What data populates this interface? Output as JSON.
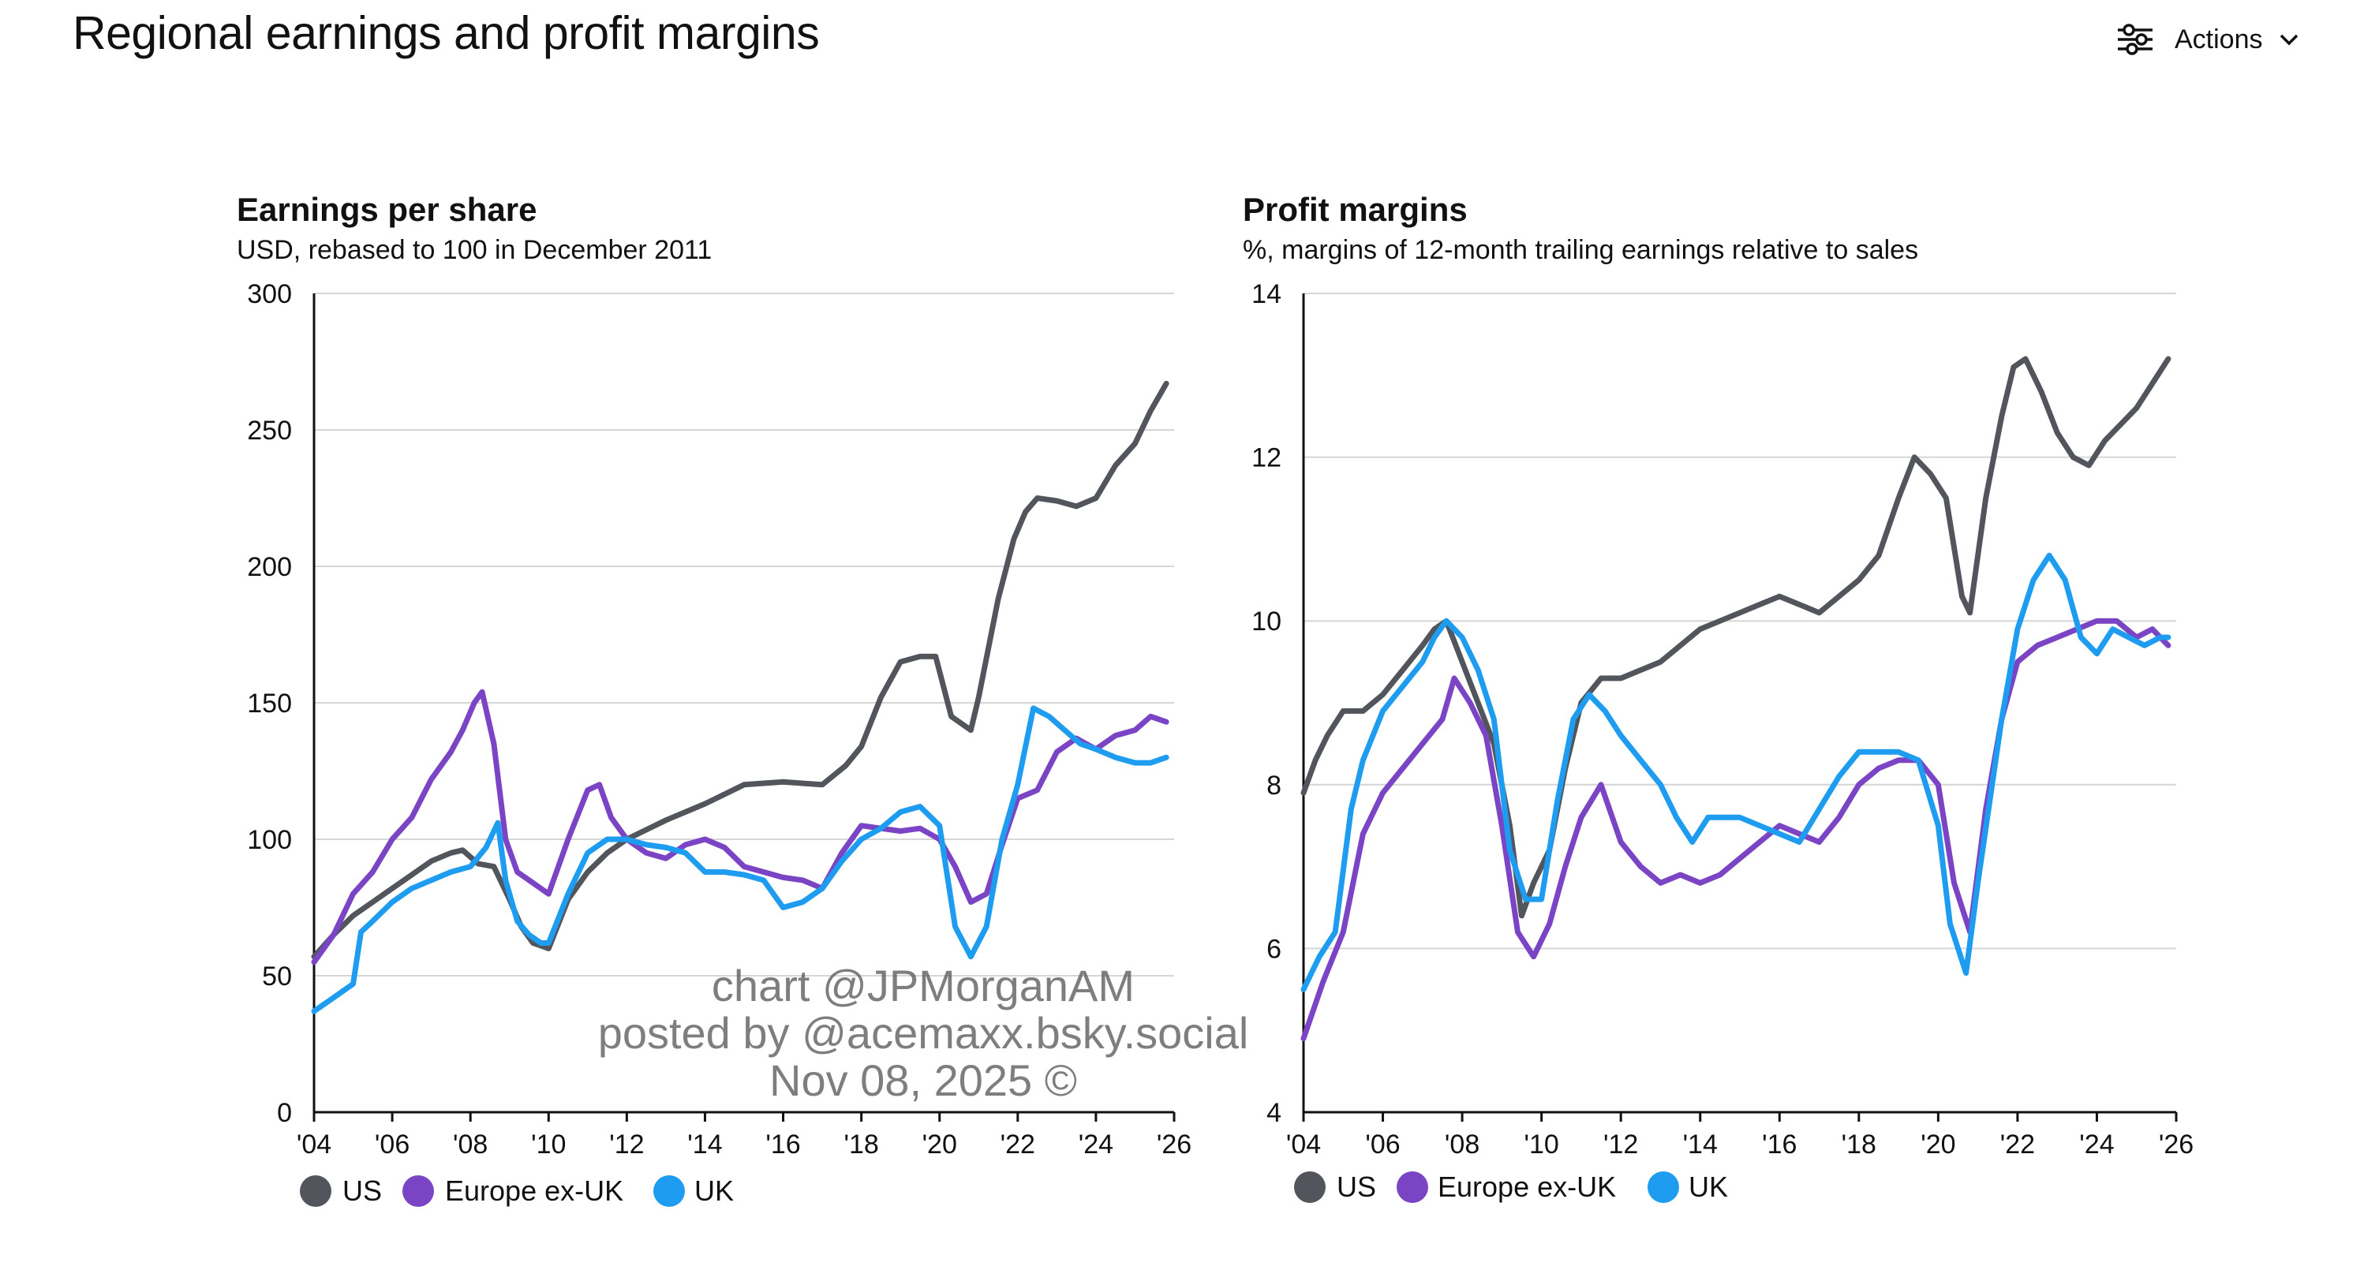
{
  "page": {
    "title": "Regional earnings and profit margins"
  },
  "actions": {
    "label": "Actions",
    "icon": "sliders-icon",
    "chevron": "chevron-down-icon"
  },
  "watermark": {
    "line1": "chart @JPMorganAM",
    "line2": "posted by @acemaxx.bsky.social",
    "line3": "Nov 08, 2025 ©"
  },
  "colors": {
    "US": "#52565c",
    "Europe ex-UK": "#7a44c4",
    "UK": "#1e9cf0",
    "grid": "#d6d6d6",
    "axis": "#111111"
  },
  "chart_data": [
    {
      "type": "line",
      "title": "Earnings per share",
      "subtitle": "USD, rebased to 100 in December 2011",
      "xlim": [
        2004,
        2026
      ],
      "ylim": [
        0,
        300
      ],
      "yticks": [
        0,
        50,
        100,
        150,
        200,
        250,
        300
      ],
      "xticks": [
        2004,
        2006,
        2008,
        2010,
        2012,
        2014,
        2016,
        2018,
        2020,
        2022,
        2024,
        2026
      ],
      "xtick_labels": [
        "'04",
        "'06",
        "'08",
        "'10",
        "'12",
        "'14",
        "'16",
        "'18",
        "'20",
        "'22",
        "'24",
        "'26"
      ],
      "grid": true,
      "legend": "bottom-left",
      "series": [
        {
          "name": "US",
          "x": [
            2004.0,
            2004.5,
            2005.0,
            2005.5,
            2006.0,
            2006.5,
            2007.0,
            2007.5,
            2007.8,
            2008.2,
            2008.6,
            2009.0,
            2009.3,
            2009.6,
            2010.0,
            2010.5,
            2011.0,
            2011.5,
            2012.0,
            2013.0,
            2014.0,
            2015.0,
            2016.0,
            2017.0,
            2017.6,
            2018.0,
            2018.5,
            2019.0,
            2019.5,
            2019.9,
            2020.3,
            2020.8,
            2021.0,
            2021.5,
            2021.9,
            2022.2,
            2022.5,
            2023.0,
            2023.5,
            2024.0,
            2024.5,
            2025.0,
            2025.4,
            2025.8
          ],
          "values": [
            57,
            65,
            72,
            77,
            82,
            87,
            92,
            95,
            96,
            91,
            90,
            78,
            68,
            62,
            60,
            78,
            88,
            95,
            100,
            107,
            113,
            120,
            121,
            120,
            127,
            134,
            152,
            165,
            167,
            167,
            145,
            140,
            152,
            188,
            210,
            220,
            225,
            224,
            222,
            225,
            237,
            245,
            257,
            267
          ]
        },
        {
          "name": "Europe ex-UK",
          "x": [
            2004.0,
            2004.5,
            2005.0,
            2005.5,
            2006.0,
            2006.5,
            2007.0,
            2007.5,
            2007.8,
            2008.1,
            2008.3,
            2008.6,
            2008.9,
            2009.2,
            2009.5,
            2010.0,
            2010.5,
            2011.0,
            2011.3,
            2011.6,
            2012.0,
            2012.5,
            2013.0,
            2013.5,
            2014.0,
            2014.5,
            2015.0,
            2015.5,
            2016.0,
            2016.5,
            2017.0,
            2017.5,
            2018.0,
            2018.5,
            2019.0,
            2019.5,
            2020.0,
            2020.4,
            2020.8,
            2021.2,
            2021.6,
            2022.0,
            2022.5,
            2023.0,
            2023.5,
            2024.0,
            2024.5,
            2025.0,
            2025.4,
            2025.8
          ],
          "values": [
            55,
            65,
            80,
            88,
            100,
            108,
            122,
            132,
            140,
            150,
            154,
            135,
            100,
            88,
            85,
            80,
            100,
            118,
            120,
            108,
            100,
            95,
            93,
            98,
            100,
            97,
            90,
            88,
            86,
            85,
            82,
            95,
            105,
            104,
            103,
            104,
            100,
            90,
            77,
            80,
            98,
            115,
            118,
            132,
            137,
            133,
            138,
            140,
            145,
            143
          ]
        },
        {
          "name": "UK",
          "x": [
            2004.0,
            2004.5,
            2005.0,
            2005.2,
            2005.5,
            2006.0,
            2006.5,
            2007.0,
            2007.5,
            2008.0,
            2008.4,
            2008.7,
            2008.9,
            2009.2,
            2009.5,
            2009.8,
            2010.0,
            2010.5,
            2011.0,
            2011.5,
            2012.0,
            2012.5,
            2013.0,
            2013.5,
            2014.0,
            2014.5,
            2015.0,
            2015.5,
            2016.0,
            2016.5,
            2017.0,
            2017.5,
            2018.0,
            2018.5,
            2019.0,
            2019.5,
            2020.0,
            2020.4,
            2020.8,
            2021.2,
            2021.6,
            2022.0,
            2022.4,
            2022.8,
            2023.2,
            2023.6,
            2024.0,
            2024.5,
            2025.0,
            2025.4,
            2025.8
          ],
          "values": [
            37,
            42,
            47,
            66,
            70,
            77,
            82,
            85,
            88,
            90,
            97,
            106,
            85,
            70,
            65,
            62,
            62,
            80,
            95,
            100,
            100,
            98,
            97,
            95,
            88,
            88,
            87,
            85,
            75,
            77,
            82,
            92,
            100,
            104,
            110,
            112,
            105,
            68,
            57,
            68,
            100,
            120,
            148,
            145,
            140,
            135,
            133,
            130,
            128,
            128,
            130
          ]
        }
      ]
    },
    {
      "type": "line",
      "title": "Profit margins",
      "subtitle": "%, margins of 12-month trailing earnings relative to sales",
      "xlim": [
        2004,
        2026
      ],
      "ylim": [
        4,
        14
      ],
      "yticks": [
        4,
        6,
        8,
        10,
        12,
        14
      ],
      "xticks": [
        2004,
        2006,
        2008,
        2010,
        2012,
        2014,
        2016,
        2018,
        2020,
        2022,
        2024,
        2026
      ],
      "xtick_labels": [
        "'04",
        "'06",
        "'08",
        "'10",
        "'12",
        "'14",
        "'16",
        "'18",
        "'20",
        "'22",
        "'24",
        "'26"
      ],
      "grid": true,
      "legend": "bottom-left",
      "series": [
        {
          "name": "US",
          "x": [
            2004.0,
            2004.3,
            2004.6,
            2005.0,
            2005.5,
            2006.0,
            2006.5,
            2007.0,
            2007.3,
            2007.6,
            2008.0,
            2008.4,
            2008.8,
            2009.2,
            2009.5,
            2009.8,
            2010.2,
            2010.6,
            2011.0,
            2011.5,
            2012.0,
            2012.5,
            2013.0,
            2013.5,
            2014.0,
            2014.5,
            2015.0,
            2015.5,
            2016.0,
            2016.5,
            2017.0,
            2017.5,
            2018.0,
            2018.5,
            2019.0,
            2019.4,
            2019.8,
            2020.2,
            2020.6,
            2020.8,
            2021.2,
            2021.6,
            2021.9,
            2022.2,
            2022.6,
            2023.0,
            2023.4,
            2023.8,
            2024.2,
            2024.6,
            2025.0,
            2025.4,
            2025.8
          ],
          "values": [
            7.9,
            8.3,
            8.6,
            8.9,
            8.9,
            9.1,
            9.4,
            9.7,
            9.9,
            10.0,
            9.5,
            9.0,
            8.5,
            7.5,
            6.4,
            6.8,
            7.2,
            8.2,
            9.0,
            9.3,
            9.3,
            9.4,
            9.5,
            9.7,
            9.9,
            10.0,
            10.1,
            10.2,
            10.3,
            10.2,
            10.1,
            10.3,
            10.5,
            10.8,
            11.5,
            12.0,
            11.8,
            11.5,
            10.3,
            10.1,
            11.5,
            12.5,
            13.1,
            13.2,
            12.8,
            12.3,
            12.0,
            11.9,
            12.2,
            12.4,
            12.6,
            12.9,
            13.2
          ]
        },
        {
          "name": "Europe ex-UK",
          "x": [
            2004.0,
            2004.5,
            2005.0,
            2005.5,
            2006.0,
            2006.5,
            2007.0,
            2007.5,
            2007.8,
            2008.2,
            2008.6,
            2009.0,
            2009.4,
            2009.8,
            2010.2,
            2010.6,
            2011.0,
            2011.5,
            2012.0,
            2012.5,
            2013.0,
            2013.5,
            2014.0,
            2014.5,
            2015.0,
            2015.5,
            2016.0,
            2016.5,
            2017.0,
            2017.5,
            2018.0,
            2018.5,
            2019.0,
            2019.5,
            2020.0,
            2020.4,
            2020.8,
            2021.2,
            2021.6,
            2022.0,
            2022.5,
            2023.0,
            2023.5,
            2024.0,
            2024.5,
            2025.0,
            2025.4,
            2025.8
          ],
          "values": [
            4.9,
            5.6,
            6.2,
            7.4,
            7.9,
            8.2,
            8.5,
            8.8,
            9.3,
            9.0,
            8.6,
            7.5,
            6.2,
            5.9,
            6.3,
            7.0,
            7.6,
            8.0,
            7.3,
            7.0,
            6.8,
            6.9,
            6.8,
            6.9,
            7.1,
            7.3,
            7.5,
            7.4,
            7.3,
            7.6,
            8.0,
            8.2,
            8.3,
            8.3,
            8.0,
            6.8,
            6.2,
            7.7,
            8.8,
            9.5,
            9.7,
            9.8,
            9.9,
            10.0,
            10.0,
            9.8,
            9.9,
            9.7
          ]
        },
        {
          "name": "UK",
          "x": [
            2004.0,
            2004.4,
            2004.8,
            2005.2,
            2005.5,
            2006.0,
            2006.5,
            2007.0,
            2007.3,
            2007.6,
            2008.0,
            2008.4,
            2008.8,
            2009.2,
            2009.6,
            2010.0,
            2010.4,
            2010.8,
            2011.2,
            2011.6,
            2012.0,
            2012.5,
            2013.0,
            2013.4,
            2013.8,
            2014.2,
            2014.6,
            2015.0,
            2015.5,
            2016.0,
            2016.5,
            2017.0,
            2017.5,
            2018.0,
            2018.5,
            2019.0,
            2019.5,
            2020.0,
            2020.3,
            2020.7,
            2021.0,
            2021.3,
            2021.6,
            2022.0,
            2022.4,
            2022.8,
            2023.2,
            2023.6,
            2024.0,
            2024.4,
            2024.8,
            2025.2,
            2025.6,
            2025.8
          ],
          "values": [
            5.5,
            5.9,
            6.2,
            7.7,
            8.3,
            8.9,
            9.2,
            9.5,
            9.8,
            10.0,
            9.8,
            9.4,
            8.8,
            7.2,
            6.6,
            6.6,
            7.8,
            8.8,
            9.1,
            8.9,
            8.6,
            8.3,
            8.0,
            7.6,
            7.3,
            7.6,
            7.6,
            7.6,
            7.5,
            7.4,
            7.3,
            7.7,
            8.1,
            8.4,
            8.4,
            8.4,
            8.3,
            7.5,
            6.3,
            5.7,
            6.8,
            7.8,
            8.8,
            9.9,
            10.5,
            10.8,
            10.5,
            9.8,
            9.6,
            9.9,
            9.8,
            9.7,
            9.8,
            9.8
          ]
        }
      ]
    }
  ]
}
